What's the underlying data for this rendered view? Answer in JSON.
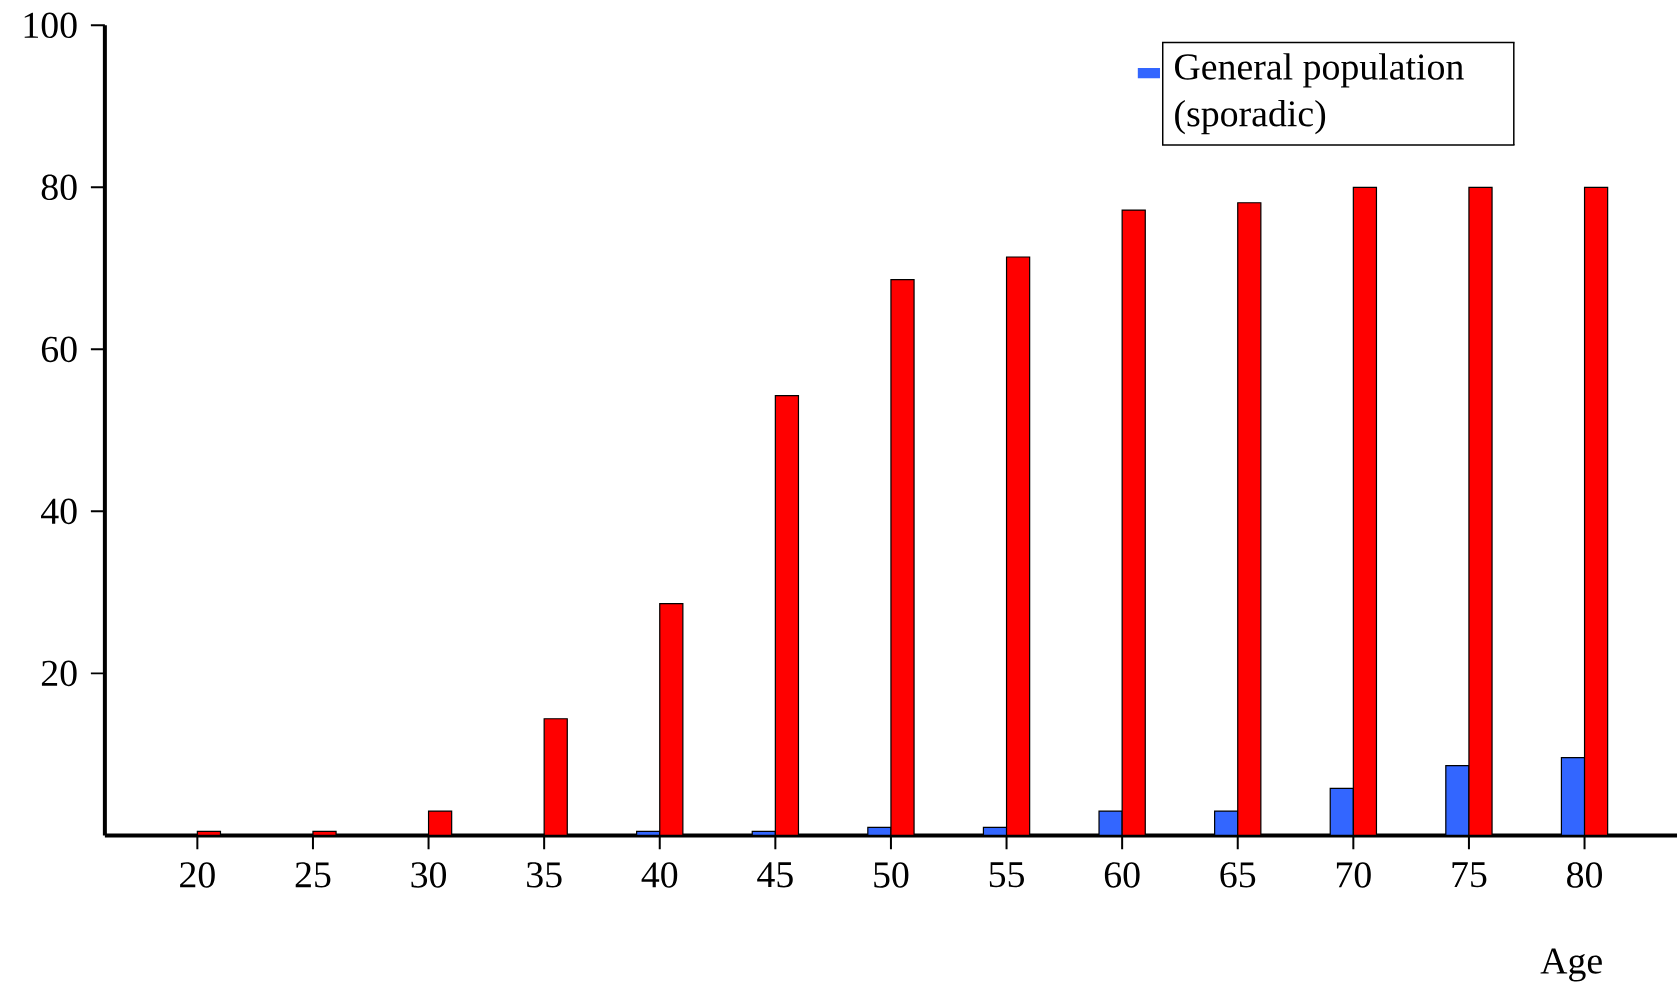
{
  "chart_data": {
    "type": "bar",
    "xlabel": "Age",
    "categories": [
      "20",
      "25",
      "30",
      "35",
      "40",
      "45",
      "50",
      "55",
      "60",
      "65",
      "70",
      "75",
      "80"
    ],
    "series": [
      {
        "name": "General population (sporadic)",
        "color": "#3366ff",
        "values": [
          null,
          null,
          null,
          null,
          0.5,
          0.5,
          1,
          1,
          3,
          3,
          5.8,
          8.6,
          9.6
        ]
      },
      {
        "color": "#ff0000",
        "values": [
          0.5,
          0.5,
          3,
          14.4,
          28.6,
          54.3,
          68.6,
          71.4,
          77.2,
          78.1,
          80,
          80,
          80
        ]
      }
    ],
    "ylim": [
      0,
      100
    ],
    "yticks": [
      20,
      40,
      60,
      80,
      100
    ],
    "legend": "top right"
  }
}
